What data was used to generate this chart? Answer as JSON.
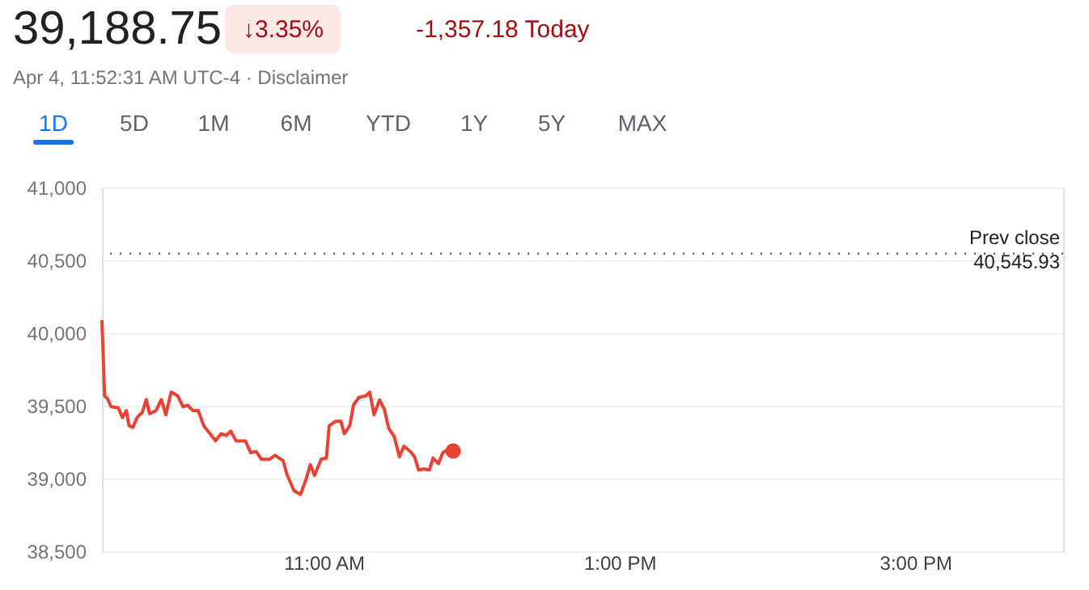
{
  "chart_data": {
    "type": "line",
    "title": "39,188.75",
    "annotations": [
      "↓3.35%",
      "-1,357.18 Today",
      "Apr 4, 11:52:31 AM UTC-4 · Disclaimer",
      "1D",
      "5D",
      "1M",
      "6M",
      "YTD",
      "1Y",
      "5Y",
      "MAX"
    ],
    "series": [
      {
        "color": "#e94235",
        "marker": "none",
        "x": [
          9.5,
          9.518,
          9.537,
          9.562,
          9.61,
          9.639,
          9.665,
          9.683,
          9.709,
          9.738,
          9.774,
          9.8,
          9.822,
          9.866,
          9.902,
          9.932,
          9.968,
          10.012,
          10.049,
          10.078,
          10.115,
          10.151,
          10.188,
          10.232,
          10.268,
          10.305,
          10.342,
          10.371,
          10.407,
          10.47,
          10.506,
          10.543,
          10.579,
          10.634,
          10.671,
          10.726,
          10.751,
          10.799,
          10.843,
          10.879,
          10.909,
          10.938,
          10.982,
          11.018,
          11.037,
          11.081,
          11.117,
          11.139,
          11.176,
          11.201,
          11.238,
          11.286,
          11.311,
          11.34,
          11.377,
          11.41,
          11.439,
          11.476,
          11.512,
          11.542,
          11.586,
          11.615,
          11.641,
          11.677,
          11.714,
          11.739,
          11.776,
          11.805,
          11.834,
          11.875
        ],
        "values": [
          40088,
          39568,
          39549,
          39493,
          39486,
          39419,
          39467,
          39363,
          39352,
          39419,
          39456,
          39542,
          39445,
          39467,
          39542,
          39438,
          39594,
          39568,
          39493,
          39504,
          39467,
          39467,
          39363,
          39307,
          39259,
          39307,
          39296,
          39326,
          39259,
          39259,
          39177,
          39185,
          39132,
          39132,
          39159,
          39121,
          39028,
          38917,
          38890,
          38990,
          39095,
          39021,
          39132,
          39140,
          39363,
          39393,
          39393,
          39307,
          39363,
          39504,
          39557,
          39568,
          39594,
          39438,
          39539,
          39475,
          39345,
          39289,
          39148,
          39222,
          39185,
          39148,
          39058,
          39065,
          39058,
          39140,
          39103,
          39177,
          39196,
          39188.75
        ]
      },
      {
        "type": "scatter",
        "color": "#e94235",
        "marker": "circle",
        "x": [
          11.875
        ],
        "values": [
          39188.75
        ]
      }
    ],
    "line_style": "solid",
    "xlim": [
      9.5,
      16
    ],
    "xticks": [
      {
        "value": 11,
        "label": "11:00 AM"
      },
      {
        "value": 13,
        "label": "1:00 PM"
      },
      {
        "value": 15,
        "label": "3:00 PM"
      }
    ],
    "ylim": [
      38500,
      41000
    ],
    "yticks": [
      {
        "value": 38500,
        "label": "38,500"
      },
      {
        "value": 39000,
        "label": "39,000"
      },
      {
        "value": 39500,
        "label": "39,500"
      },
      {
        "value": 40000,
        "label": "40,000"
      },
      {
        "value": 40500,
        "label": "40,500"
      },
      {
        "value": 41000,
        "label": "41,000"
      }
    ],
    "ref_lines": [
      {
        "axis": "y",
        "value": 40545.93,
        "label": "Prev close\n40,545.93",
        "color": "#5f6368",
        "line_style": "dotted"
      }
    ],
    "grid": "y"
  }
}
